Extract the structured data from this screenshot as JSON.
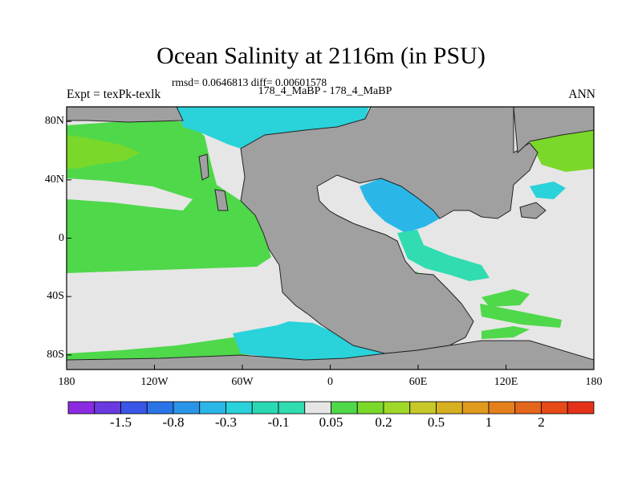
{
  "title": "Ocean Salinity at 2116m (in PSU)",
  "stats": "rmsd= 0.0646813 diff= 0.00601578",
  "experiment": "Expt = texPk-texlk",
  "subtitle": "178_4_MaBP - 178_4_MaBP",
  "season": "ANN",
  "x_ticks": [
    "180",
    "120W",
    "60W",
    "0",
    "60E",
    "120E",
    "180"
  ],
  "y_ticks": [
    "80N",
    "40N",
    "0",
    "40S",
    "80S"
  ],
  "colorbar": {
    "colors": [
      "#8a2be2",
      "#6a3ae0",
      "#3a56e6",
      "#2a74e8",
      "#2a95e8",
      "#2ab7e8",
      "#2ad2da",
      "#2ad8b4",
      "#30dcb0",
      "#e6e6e6",
      "#4fd84a",
      "#7ad82a",
      "#a0d82a",
      "#c6c82a",
      "#d6b020",
      "#e09a1e",
      "#e4801c",
      "#e4661a",
      "#e64a16",
      "#e4321a"
    ],
    "labels": [
      "-1.5",
      "-0.8",
      "-0.3",
      "-0.1",
      "0.05",
      "0.2",
      "0.5",
      "1",
      "2"
    ]
  },
  "map_colors": {
    "land": "#a0a0a0",
    "neutral": "#e6e6e6",
    "positive_small": "#4fd84a",
    "positive_mid": "#7ad82a",
    "negative_small": "#30dcb0",
    "negative_mid": "#2ad2da",
    "negative_large": "#2ab7e8"
  }
}
